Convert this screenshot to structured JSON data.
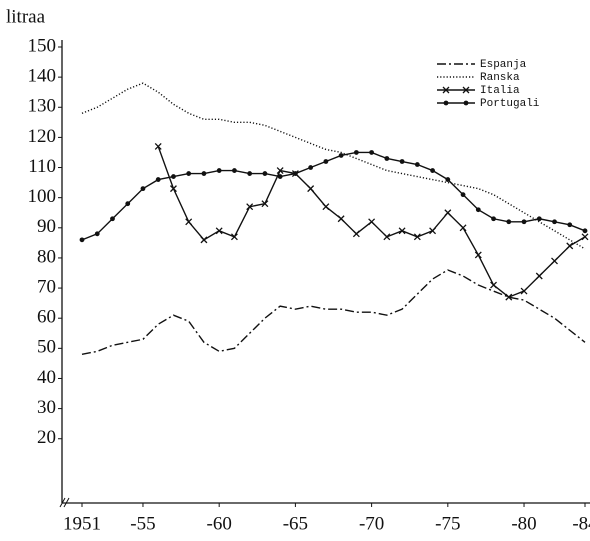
{
  "chart_data": {
    "type": "line",
    "y_label": "litraa",
    "x": [
      1951,
      1952,
      1953,
      1954,
      1955,
      1956,
      1957,
      1958,
      1959,
      1960,
      1961,
      1962,
      1963,
      1964,
      1965,
      1966,
      1967,
      1968,
      1969,
      1970,
      1971,
      1972,
      1973,
      1974,
      1975,
      1976,
      1977,
      1978,
      1979,
      1980,
      1981,
      1982,
      1983,
      1984
    ],
    "xlim": [
      1951,
      1984
    ],
    "xticks": [
      1951,
      {
        "value": 1955,
        "label": "-55"
      },
      {
        "value": 1960,
        "label": "-60"
      },
      {
        "value": 1965,
        "label": "-65"
      },
      {
        "value": 1970,
        "label": "-70"
      },
      {
        "value": 1975,
        "label": "-75"
      },
      {
        "value": 1980,
        "label": "-80"
      },
      {
        "value": 1984,
        "label": "-84"
      }
    ],
    "ylim": [
      0,
      150
    ],
    "yticks": [
      20,
      30,
      40,
      50,
      60,
      70,
      80,
      90,
      100,
      110,
      120,
      130,
      140,
      150
    ],
    "legend": "upper right",
    "series": [
      {
        "name": "Espanja",
        "color": "#111111",
        "style": "dashdot",
        "marker": "none",
        "values": [
          48,
          49,
          51,
          52,
          53,
          58,
          61,
          59,
          52,
          49,
          50,
          55,
          60,
          64,
          63,
          64,
          63,
          63,
          62,
          62,
          61,
          63,
          68,
          73,
          76,
          74,
          71,
          69,
          67,
          66,
          63,
          60,
          56,
          52
        ]
      },
      {
        "name": "Ranska",
        "color": "#111111",
        "style": "dotted",
        "marker": "none",
        "values": [
          128,
          130,
          133,
          136,
          138,
          135,
          131,
          128,
          126,
          126,
          125,
          125,
          124,
          122,
          120,
          118,
          116,
          115,
          113,
          111,
          109,
          108,
          107,
          106,
          105,
          104,
          103,
          101,
          98,
          95,
          92,
          89,
          86,
          83
        ]
      },
      {
        "name": "Italia",
        "color": "#111111",
        "style": "solid",
        "marker": "x",
        "values": [
          null,
          null,
          null,
          null,
          null,
          117,
          103,
          92,
          86,
          89,
          87,
          97,
          98,
          109,
          108,
          103,
          97,
          93,
          88,
          92,
          87,
          89,
          87,
          89,
          95,
          90,
          81,
          71,
          67,
          69,
          74,
          79,
          84,
          87
        ]
      },
      {
        "name": "Portugali",
        "color": "#111111",
        "style": "solid",
        "marker": "dot",
        "values": [
          86,
          88,
          93,
          98,
          103,
          106,
          107,
          108,
          108,
          109,
          109,
          108,
          108,
          107,
          108,
          110,
          112,
          114,
          115,
          115,
          113,
          112,
          111,
          109,
          106,
          101,
          96,
          93,
          92,
          92,
          93,
          92,
          91,
          89
        ]
      }
    ]
  }
}
